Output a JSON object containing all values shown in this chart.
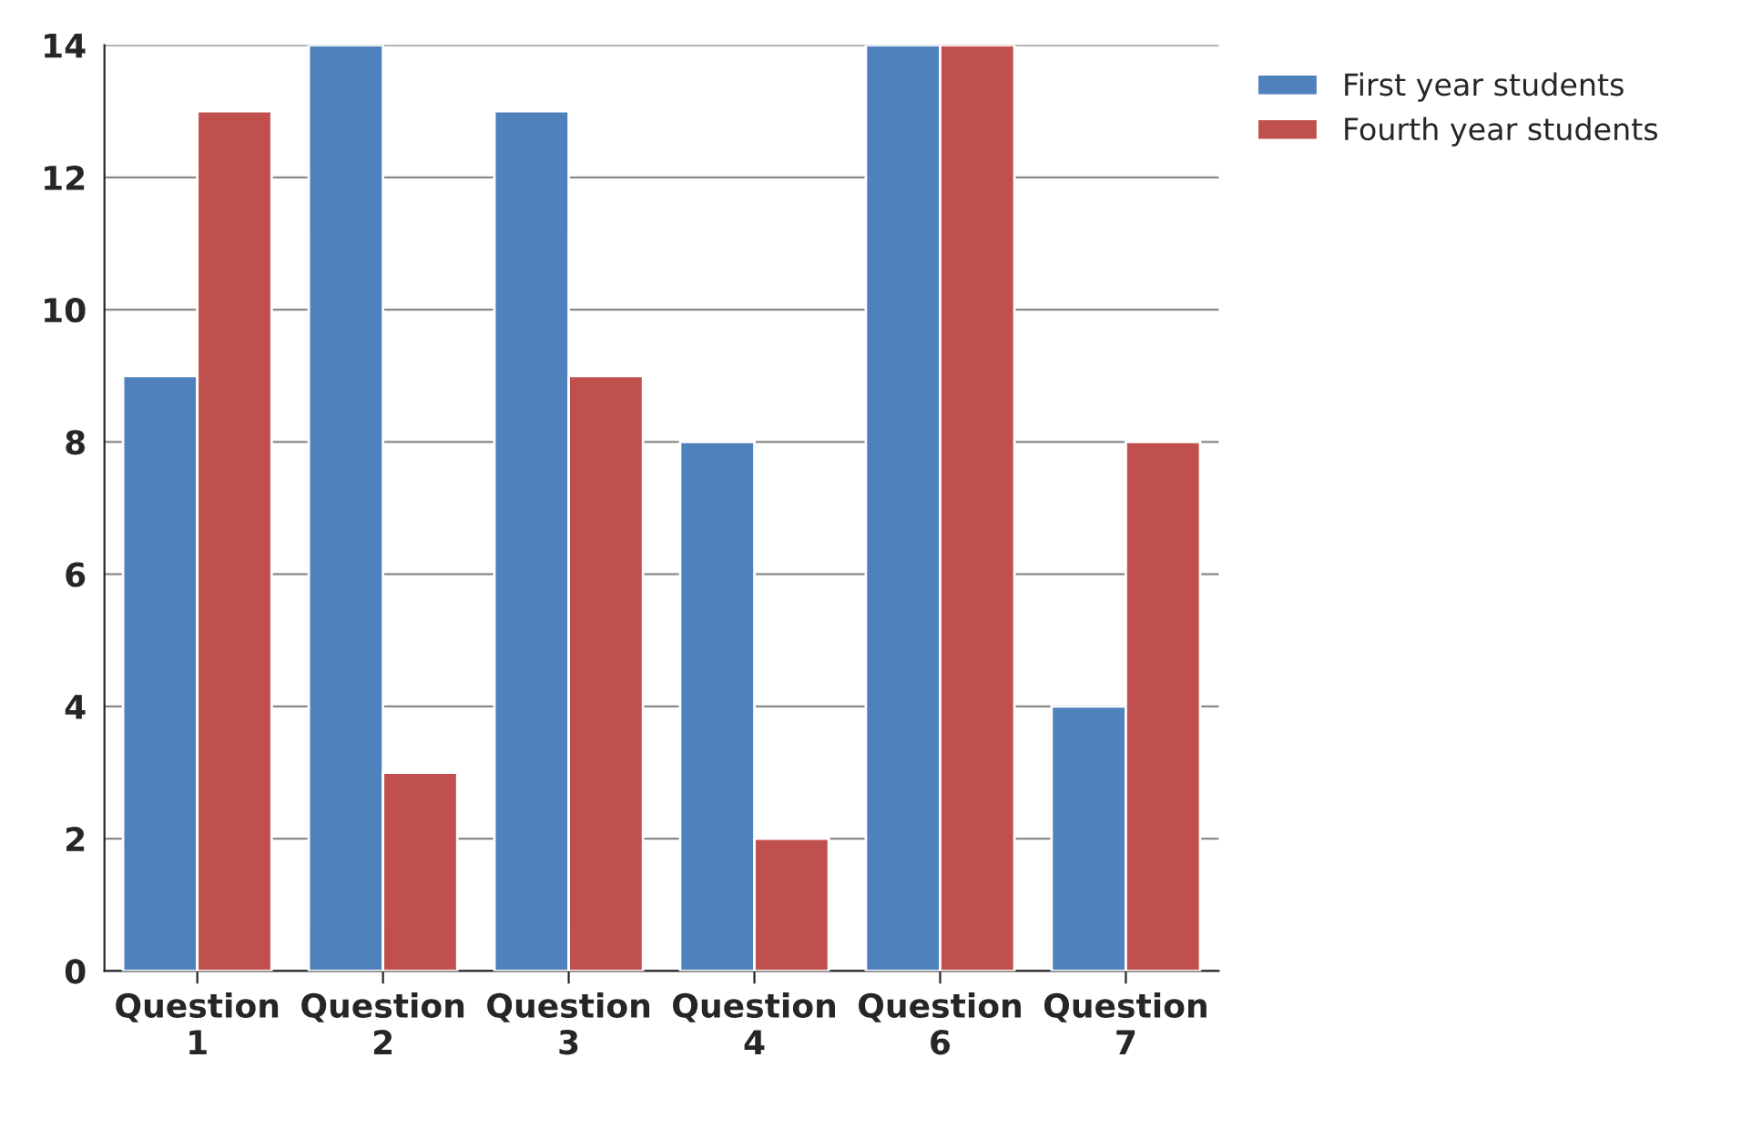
{
  "chart_data": {
    "type": "bar",
    "categories": [
      "Question\n1",
      "Question\n2",
      "Question\n3",
      "Question\n4",
      "Question\n6",
      "Question\n7"
    ],
    "series": [
      {
        "name": "First year students",
        "color": "#4f81bd",
        "values": [
          9,
          14,
          13,
          8,
          14,
          4
        ]
      },
      {
        "name": "Fourth year students",
        "color": "#c0504d",
        "values": [
          13,
          3,
          9,
          2,
          14,
          8
        ]
      }
    ],
    "ylim": [
      0,
      14
    ],
    "yticks": [
      0,
      2,
      4,
      6,
      8,
      10,
      12,
      14
    ],
    "grid": "y",
    "legend": "top right"
  }
}
